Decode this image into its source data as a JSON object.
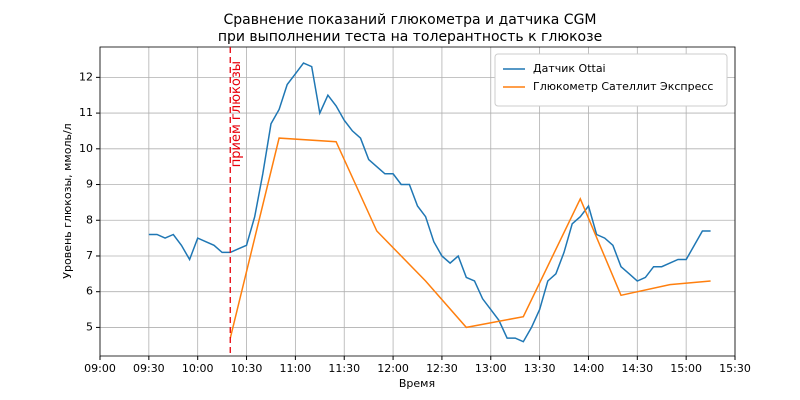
{
  "chart_data": {
    "type": "line",
    "title": [
      "Сравнение показаний глюкометра и датчика CGM",
      "при выполнении теста на толерантность к глюкозе"
    ],
    "xlabel": "Время",
    "ylabel": "Уровень глюкозы, ммоль/л",
    "xlim": [
      "09:00",
      "15:30"
    ],
    "xticks": [
      "09:00",
      "09:30",
      "10:00",
      "10:30",
      "11:00",
      "11:30",
      "12:00",
      "12:30",
      "13:00",
      "13:30",
      "14:00",
      "14:30",
      "15:00",
      "15:30"
    ],
    "ylim": [
      4.2,
      12.85
    ],
    "yticks": [
      5,
      6,
      7,
      8,
      9,
      10,
      11,
      12
    ],
    "grid": true,
    "legend": "upper right",
    "series": [
      {
        "name": "Датчик Ottai",
        "color": "#1f77b4",
        "x": [
          "09:30",
          "09:35",
          "09:40",
          "09:45",
          "09:50",
          "09:55",
          "10:00",
          "10:05",
          "10:10",
          "10:15",
          "10:20",
          "10:25",
          "10:30",
          "10:35",
          "10:40",
          "10:45",
          "10:50",
          "10:55",
          "11:00",
          "11:05",
          "11:10",
          "11:15",
          "11:20",
          "11:25",
          "11:30",
          "11:35",
          "11:40",
          "11:45",
          "11:50",
          "11:55",
          "12:00",
          "12:05",
          "12:10",
          "12:15",
          "12:20",
          "12:25",
          "12:30",
          "12:35",
          "12:40",
          "12:45",
          "12:50",
          "12:55",
          "13:00",
          "13:05",
          "13:10",
          "13:15",
          "13:20",
          "13:25",
          "13:30",
          "13:35",
          "13:40",
          "13:45",
          "13:50",
          "13:55",
          "14:00",
          "14:05",
          "14:10",
          "14:15",
          "14:20",
          "14:25",
          "14:30",
          "14:35",
          "14:40",
          "14:45",
          "14:50",
          "14:55",
          "15:00",
          "15:05",
          "15:10",
          "15:15"
        ],
        "values": [
          7.6,
          7.6,
          7.5,
          7.6,
          7.3,
          6.9,
          7.5,
          7.4,
          7.3,
          7.1,
          7.1,
          7.2,
          7.3,
          8.1,
          9.3,
          10.7,
          11.1,
          11.8,
          12.1,
          12.4,
          12.3,
          11.0,
          11.5,
          11.2,
          10.8,
          10.5,
          10.3,
          9.7,
          9.5,
          9.3,
          9.3,
          9.0,
          9.0,
          8.4,
          8.1,
          7.4,
          7.0,
          6.8,
          7.0,
          6.4,
          6.3,
          5.8,
          5.5,
          5.2,
          4.7,
          4.7,
          4.6,
          5.0,
          5.5,
          6.3,
          6.5,
          7.1,
          7.9,
          8.1,
          8.4,
          7.6,
          7.5,
          7.3,
          6.7,
          6.5,
          6.3,
          6.4,
          6.7,
          6.7,
          6.8,
          6.9,
          6.9,
          7.3,
          7.7,
          7.7
        ]
      },
      {
        "name": "Глюкометр Сателлит Экспресс",
        "color": "#ff7f0e",
        "x": [
          "10:20",
          "10:50",
          "11:25",
          "11:50",
          "12:20",
          "12:45",
          "13:20",
          "13:55",
          "14:20",
          "14:50",
          "15:15"
        ],
        "values": [
          4.7,
          10.3,
          10.2,
          7.7,
          6.3,
          5.0,
          5.3,
          8.6,
          5.9,
          6.2,
          6.3
        ]
      }
    ],
    "vline": {
      "x": "10:20",
      "color": "#e8000b",
      "label": "прием глюкозы"
    }
  }
}
